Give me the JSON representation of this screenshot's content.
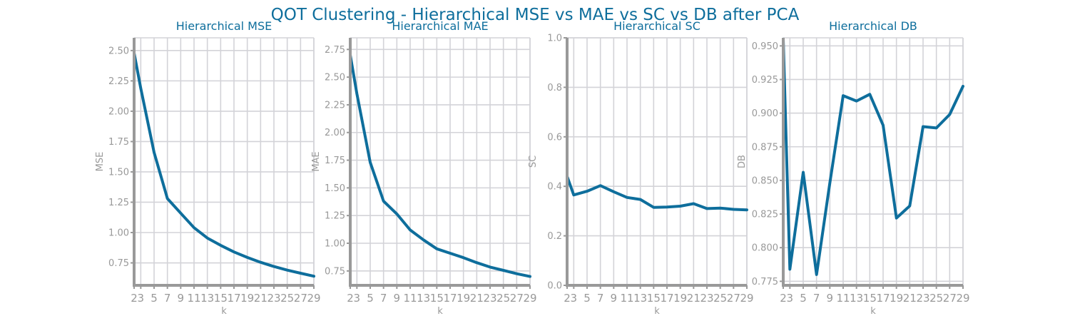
{
  "suptitle": "QOT Clustering - Hierarchical MSE vs MAE vs SC vs DB after PCA",
  "colors": {
    "line": "#0e6e9c",
    "title": "#0e6e9c",
    "axis": "#999999",
    "grid": "#d3d3d8"
  },
  "chart_data": [
    {
      "type": "line",
      "title": "Hierarchical MSE",
      "xlabel": "k",
      "ylabel": "MSE",
      "x": [
        2,
        3,
        5,
        7,
        9,
        11,
        13,
        15,
        17,
        19,
        21,
        23,
        25,
        27,
        29
      ],
      "xticks": [
        2,
        3,
        5,
        7,
        9,
        11,
        13,
        15,
        17,
        19,
        21,
        23,
        25,
        27,
        29
      ],
      "y": [
        2.48,
        2.19,
        1.66,
        1.28,
        1.16,
        1.04,
        0.955,
        0.895,
        0.84,
        0.795,
        0.755,
        0.72,
        0.69,
        0.665,
        0.64
      ],
      "yticks": [
        "0.75",
        "1.00",
        "1.25",
        "1.50",
        "1.75",
        "2.00",
        "2.25",
        "2.50"
      ],
      "ylim": [
        0.565,
        2.605
      ],
      "xlim": [
        2,
        29
      ],
      "grid": true
    },
    {
      "type": "line",
      "title": "Hierarchical MAE",
      "xlabel": "k",
      "ylabel": "MAE",
      "x": [
        2,
        3,
        5,
        7,
        9,
        11,
        13,
        15,
        17,
        19,
        21,
        23,
        25,
        27,
        29
      ],
      "xticks": [
        2,
        3,
        5,
        7,
        9,
        11,
        13,
        15,
        17,
        19,
        21,
        23,
        25,
        27,
        29
      ],
      "y": [
        2.7,
        2.35,
        1.73,
        1.38,
        1.265,
        1.12,
        1.03,
        0.95,
        0.91,
        0.87,
        0.825,
        0.785,
        0.755,
        0.725,
        0.7
      ],
      "yticks": [
        "0.75",
        "1.00",
        "1.25",
        "1.50",
        "1.75",
        "2.00",
        "2.25",
        "2.50",
        "2.75"
      ],
      "ylim": [
        0.62,
        2.855
      ],
      "xlim": [
        2,
        29
      ],
      "grid": true
    },
    {
      "type": "line",
      "title": "Hierarchical SC",
      "xlabel": "k",
      "ylabel": "SC",
      "x": [
        2,
        3,
        5,
        7,
        9,
        11,
        13,
        15,
        17,
        19,
        21,
        23,
        25,
        27,
        29
      ],
      "xticks": [
        2,
        3,
        5,
        7,
        9,
        11,
        13,
        15,
        17,
        19,
        21,
        23,
        25,
        27,
        29
      ],
      "y": [
        0.44,
        0.365,
        0.38,
        0.403,
        0.378,
        0.355,
        0.347,
        0.315,
        0.316,
        0.32,
        0.33,
        0.31,
        0.312,
        0.307,
        0.305
      ],
      "yticks": [
        "0.0",
        "0.2",
        "0.4",
        "0.6",
        "0.8",
        "1.0"
      ],
      "ylim": [
        0,
        1
      ],
      "xlim": [
        2,
        29
      ],
      "grid": true
    },
    {
      "type": "line",
      "title": "Hierarchical DB",
      "xlabel": "k",
      "ylabel": "DB",
      "x": [
        2,
        3,
        5,
        7,
        9,
        11,
        13,
        15,
        17,
        19,
        21,
        23,
        25,
        27,
        29
      ],
      "xticks": [
        2,
        3,
        5,
        7,
        9,
        11,
        13,
        15,
        17,
        19,
        21,
        23,
        25,
        27,
        29
      ],
      "y": [
        0.955,
        0.784,
        0.856,
        0.78,
        0.848,
        0.913,
        0.909,
        0.914,
        0.891,
        0.822,
        0.831,
        0.89,
        0.889,
        0.899,
        0.92
      ],
      "yticks": [
        "0.775",
        "0.800",
        "0.825",
        "0.850",
        "0.875",
        "0.900",
        "0.925",
        "0.950"
      ],
      "ylim": [
        0.772,
        0.956
      ],
      "xlim": [
        2,
        29
      ],
      "grid": true
    }
  ]
}
